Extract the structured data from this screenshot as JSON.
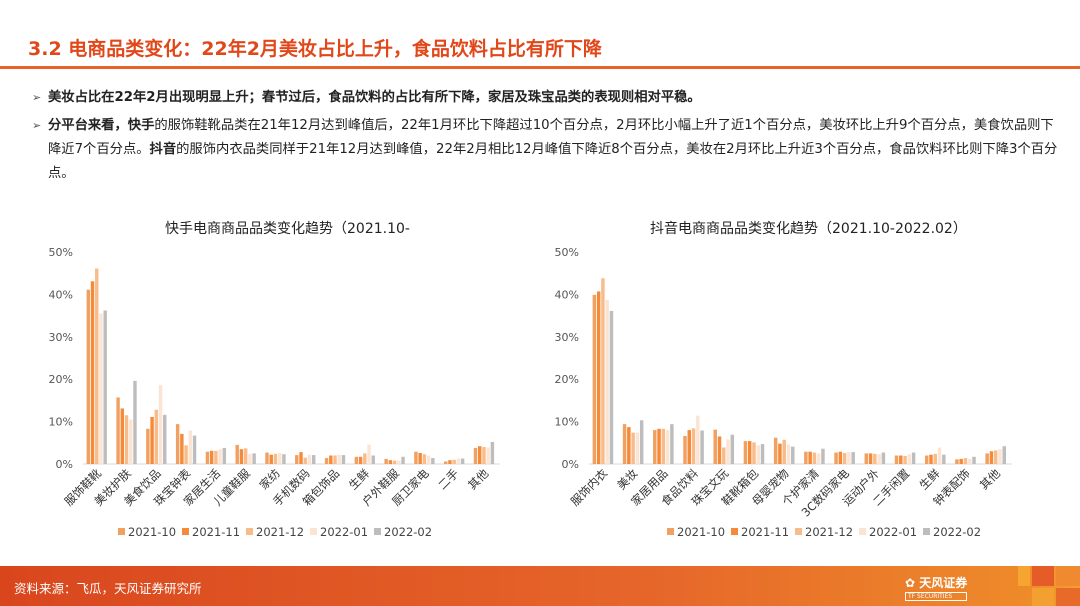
{
  "header": {
    "title": "3.2 电商品类变化：22年2月美妆占比上升，食品饮料占比有所下降"
  },
  "bullets": [
    [
      {
        "t": "美妆占比在22年2月出现明显上升；春节过后，食品饮料的占比有所下降，家居及珠宝品类的表现则相对平稳。",
        "b": true
      }
    ],
    [
      {
        "t": "分平台来看，快手",
        "b": true
      },
      {
        "t": "的服饰鞋靴品类在21年12月达到峰值后，22年1月环比下降超过10个百分点，2月环比小幅上升了近1个百分点，美妆环比上升9个百分点，美食饮品则下降近7个百分点。",
        "b": false
      },
      {
        "t": "抖音",
        "b": true
      },
      {
        "t": "的服饰内衣品类同样于21年12月达到峰值，22年2月相比12月峰值下降近8个百分点，美妆在2月环比上升近3个百分点，食品饮料环比则下降3个百分点。",
        "b": false
      }
    ]
  ],
  "footer": {
    "source": "资料来源：飞瓜，天风证券研究所",
    "logo_text": "天风证券",
    "logo_sub": "TF SECURITIES"
  },
  "colors": {
    "title": "#E0481A",
    "series": [
      "#F0A060",
      "#F58A3A",
      "#F8BC8A",
      "#FCE4D4",
      "#BDBDBD"
    ]
  },
  "chart_data": [
    {
      "type": "bar",
      "title": "快手电商商品品类变化趋势（2021.10-",
      "ylim": [
        0,
        50
      ],
      "yticks": [
        "0%",
        "10%",
        "20%",
        "30%",
        "40%",
        "50%"
      ],
      "legend": "bottom",
      "grid": false,
      "categories": [
        "服饰鞋靴",
        "美妆护肤",
        "美食饮品",
        "珠宝钟表",
        "家居生活",
        "儿童鞋服",
        "家纺",
        "手机数码",
        "箱包饰品",
        "生鲜",
        "户外鞋服",
        "厨卫家电",
        "二手",
        "其他"
      ],
      "series": [
        {
          "name": "2021-10",
          "values": [
            41.1,
            15.7,
            8.3,
            9.4,
            2.9,
            4.5,
            2.7,
            2.1,
            1.4,
            1.7,
            1.2,
            2.9,
            0.6,
            3.8
          ]
        },
        {
          "name": "2021-11",
          "values": [
            43.1,
            13.1,
            11.1,
            7.1,
            3.1,
            3.5,
            2.2,
            2.8,
            2.0,
            1.7,
            0.9,
            2.6,
            0.9,
            4.2
          ]
        },
        {
          "name": "2021-12",
          "values": [
            46.1,
            11.5,
            12.8,
            4.4,
            3.1,
            3.7,
            2.4,
            1.5,
            2.0,
            2.5,
            0.8,
            2.3,
            1.0,
            4.0
          ]
        },
        {
          "name": "2022-01",
          "values": [
            35.5,
            10.5,
            18.6,
            7.9,
            3.5,
            2.4,
            2.6,
            2.2,
            2.2,
            4.6,
            0.8,
            2.0,
            1.3,
            3.9
          ]
        },
        {
          "name": "2022-02",
          "values": [
            36.2,
            19.6,
            11.6,
            6.7,
            3.8,
            2.5,
            2.3,
            2.1,
            2.1,
            2.0,
            1.7,
            1.4,
            1.3,
            5.2
          ]
        }
      ]
    },
    {
      "type": "bar",
      "title": "抖音电商商品品类变化趋势（2021.10-2022.02）",
      "ylim": [
        0,
        50
      ],
      "yticks": [
        "0%",
        "10%",
        "20%",
        "30%",
        "40%",
        "50%"
      ],
      "legend": "bottom",
      "grid": false,
      "categories": [
        "服饰内衣",
        "美妆",
        "家居用品",
        "食品饮料",
        "珠宝文玩",
        "鞋靴箱包",
        "母婴宠物",
        "个护家清",
        "3C数码家电",
        "运动户外",
        "二手闲置",
        "生鲜",
        "钟表配饰",
        "其他"
      ],
      "series": [
        {
          "name": "2021-10",
          "values": [
            39.9,
            9.4,
            8.0,
            6.6,
            8.1,
            5.4,
            6.2,
            2.9,
            2.7,
            2.5,
            2.0,
            2.0,
            1.1,
            2.5
          ]
        },
        {
          "name": "2021-11",
          "values": [
            40.7,
            8.7,
            8.3,
            8.0,
            6.5,
            5.4,
            4.8,
            2.9,
            2.9,
            2.5,
            2.0,
            2.2,
            1.2,
            3.0
          ]
        },
        {
          "name": "2021-12",
          "values": [
            43.8,
            7.4,
            8.3,
            8.4,
            3.9,
            5.1,
            5.7,
            2.7,
            2.6,
            2.4,
            1.9,
            2.4,
            1.4,
            3.2
          ]
        },
        {
          "name": "2022-01",
          "values": [
            38.7,
            7.4,
            8.0,
            11.4,
            5.8,
            4.4,
            4.6,
            2.5,
            2.8,
            2.3,
            2.3,
            3.9,
            1.2,
            3.5
          ]
        },
        {
          "name": "2022-02",
          "values": [
            36.1,
            10.3,
            9.4,
            7.9,
            6.9,
            4.7,
            4.1,
            3.6,
            2.8,
            2.7,
            2.7,
            2.2,
            1.7,
            4.2
          ]
        }
      ]
    }
  ]
}
